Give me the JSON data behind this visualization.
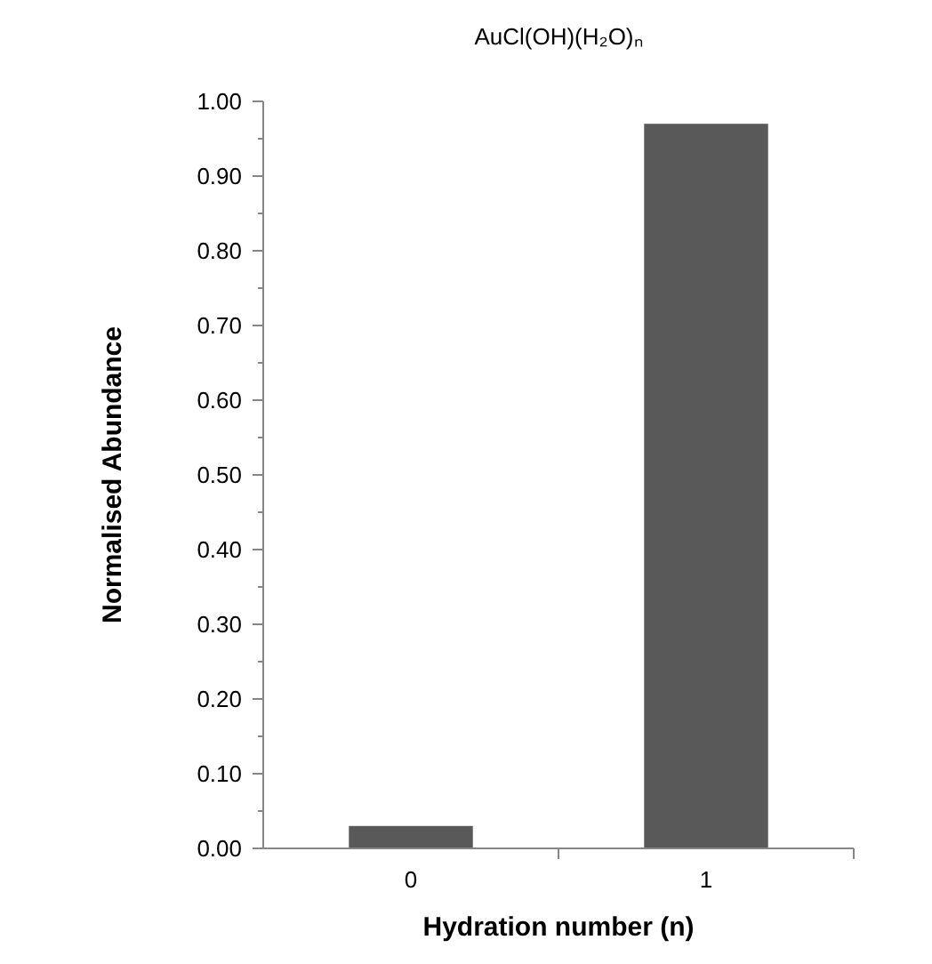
{
  "chart_data": {
    "type": "bar",
    "title": "AuCl(OH)(H₂O)ₙ",
    "xlabel": "Hydration number (n)",
    "ylabel": "Normalised Abundance",
    "categories": [
      "0",
      "1"
    ],
    "values": [
      0.03,
      0.97
    ],
    "color": "#595959",
    "ylim": [
      0,
      1
    ],
    "yticks": [
      {
        "value": 0,
        "label": "0.00"
      },
      {
        "value": 0.05,
        "label": null
      },
      {
        "value": 0.1,
        "label": "0.10"
      },
      {
        "value": 0.15,
        "label": null
      },
      {
        "value": 0.2,
        "label": "0.20"
      },
      {
        "value": 0.25,
        "label": null
      },
      {
        "value": 0.3,
        "label": "0.30"
      },
      {
        "value": 0.35,
        "label": null
      },
      {
        "value": 0.4,
        "label": "0.40"
      },
      {
        "value": 0.45,
        "label": null
      },
      {
        "value": 0.5,
        "label": "0.50"
      },
      {
        "value": 0.55,
        "label": null
      },
      {
        "value": 0.6,
        "label": "0.60"
      },
      {
        "value": 0.65,
        "label": null
      },
      {
        "value": 0.7,
        "label": "0.70"
      },
      {
        "value": 0.75,
        "label": null
      },
      {
        "value": 0.8,
        "label": "0.80"
      },
      {
        "value": 0.85,
        "label": null
      },
      {
        "value": 0.9,
        "label": "0.90"
      },
      {
        "value": 0.95,
        "label": null
      },
      {
        "value": 1,
        "label": "1.00"
      }
    ],
    "grid": false
  }
}
